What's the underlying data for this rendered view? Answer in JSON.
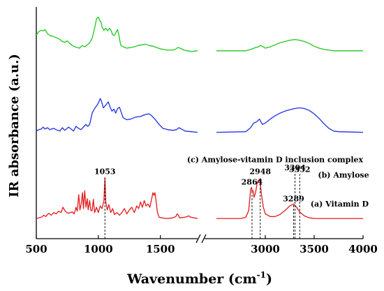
{
  "chart_data": {
    "type": "line",
    "xlabel": "Wavenumber (cm",
    "xlabel_sup": "-1",
    "xlabel_close": ")",
    "ylabel": "IR  absorbance (a.u.)",
    "x_panels": [
      {
        "xlim": [
          500,
          1800
        ],
        "ticks": [
          500,
          1000,
          1500
        ]
      },
      {
        "xlim": [
          2500,
          4000
        ],
        "ticks": [
          3000,
          3500,
          4000
        ]
      }
    ],
    "axis_break": true,
    "grid": false,
    "legend": "none (labels printed next to each trace)",
    "series": [
      {
        "name": "(a) Vitamin D",
        "color": "#e41a1c",
        "offset": 0,
        "scale": 1.0,
        "points": [
          [
            500,
            0.03
          ],
          [
            540,
            0.05
          ],
          [
            560,
            0.08
          ],
          [
            575,
            0.06
          ],
          [
            600,
            0.11
          ],
          [
            620,
            0.08
          ],
          [
            640,
            0.12
          ],
          [
            660,
            0.1
          ],
          [
            680,
            0.14
          ],
          [
            700,
            0.12
          ],
          [
            715,
            0.2
          ],
          [
            730,
            0.15
          ],
          [
            745,
            0.12
          ],
          [
            760,
            0.11
          ],
          [
            790,
            0.13
          ],
          [
            805,
            0.1
          ],
          [
            820,
            0.2
          ],
          [
            830,
            0.14
          ],
          [
            842,
            0.39
          ],
          [
            852,
            0.16
          ],
          [
            862,
            0.25
          ],
          [
            872,
            0.42
          ],
          [
            880,
            0.18
          ],
          [
            890,
            0.45
          ],
          [
            900,
            0.2
          ],
          [
            910,
            0.33
          ],
          [
            918,
            0.16
          ],
          [
            930,
            0.3
          ],
          [
            940,
            0.15
          ],
          [
            950,
            0.15
          ],
          [
            960,
            0.32
          ],
          [
            970,
            0.12
          ],
          [
            985,
            0.2
          ],
          [
            1000,
            0.12
          ],
          [
            1015,
            0.22
          ],
          [
            1030,
            0.18
          ],
          [
            1045,
            0.3
          ],
          [
            1053,
            0.64
          ],
          [
            1060,
            0.28
          ],
          [
            1072,
            0.16
          ],
          [
            1085,
            0.24
          ],
          [
            1100,
            0.12
          ],
          [
            1115,
            0.18
          ],
          [
            1130,
            0.09
          ],
          [
            1150,
            0.12
          ],
          [
            1170,
            0.08
          ],
          [
            1190,
            0.12
          ],
          [
            1210,
            0.18
          ],
          [
            1230,
            0.1
          ],
          [
            1250,
            0.16
          ],
          [
            1270,
            0.2
          ],
          [
            1290,
            0.12
          ],
          [
            1310,
            0.22
          ],
          [
            1325,
            0.18
          ],
          [
            1340,
            0.28
          ],
          [
            1355,
            0.2
          ],
          [
            1370,
            0.3
          ],
          [
            1385,
            0.22
          ],
          [
            1400,
            0.25
          ],
          [
            1415,
            0.2
          ],
          [
            1430,
            0.33
          ],
          [
            1440,
            0.42
          ],
          [
            1448,
            0.38
          ],
          [
            1456,
            0.42
          ],
          [
            1465,
            0.3
          ],
          [
            1475,
            0.13
          ],
          [
            1490,
            0.05
          ],
          [
            1510,
            0.04
          ],
          [
            1550,
            0.03
          ],
          [
            1600,
            0.04
          ],
          [
            1625,
            0.06
          ],
          [
            1635,
            0.1
          ],
          [
            1645,
            0.08
          ],
          [
            1655,
            0.04
          ],
          [
            1700,
            0.05
          ],
          [
            1730,
            0.07
          ],
          [
            1745,
            0.05
          ],
          [
            1800,
            0.03
          ],
          [
            2500,
            0.03
          ],
          [
            2750,
            0.03
          ],
          [
            2800,
            0.05
          ],
          [
            2830,
            0.15
          ],
          [
            2850,
            0.47
          ],
          [
            2860,
            0.5
          ],
          [
            2864,
            0.45
          ],
          [
            2875,
            0.45
          ],
          [
            2885,
            0.35
          ],
          [
            2900,
            0.42
          ],
          [
            2915,
            0.55
          ],
          [
            2925,
            0.6
          ],
          [
            2940,
            0.62
          ],
          [
            2948,
            0.57
          ],
          [
            2960,
            0.4
          ],
          [
            2980,
            0.2
          ],
          [
            3000,
            0.1
          ],
          [
            3050,
            0.06
          ],
          [
            3100,
            0.06
          ],
          [
            3150,
            0.09
          ],
          [
            3200,
            0.15
          ],
          [
            3250,
            0.22
          ],
          [
            3289,
            0.25
          ],
          [
            3320,
            0.2
          ],
          [
            3350,
            0.13
          ],
          [
            3400,
            0.07
          ],
          [
            3450,
            0.04
          ],
          [
            3500,
            0.03
          ],
          [
            4000,
            0.03
          ]
        ]
      },
      {
        "name": "(b) Amylose",
        "color": "#1f2ee6",
        "offset": 1.0,
        "scale": 1.0,
        "points": [
          [
            500,
            0.35
          ],
          [
            520,
            0.37
          ],
          [
            540,
            0.38
          ],
          [
            555,
            0.41
          ],
          [
            570,
            0.38
          ],
          [
            590,
            0.4
          ],
          [
            610,
            0.37
          ],
          [
            640,
            0.39
          ],
          [
            660,
            0.37
          ],
          [
            690,
            0.35
          ],
          [
            710,
            0.4
          ],
          [
            730,
            0.36
          ],
          [
            760,
            0.41
          ],
          [
            780,
            0.38
          ],
          [
            800,
            0.35
          ],
          [
            820,
            0.42
          ],
          [
            840,
            0.39
          ],
          [
            860,
            0.37
          ],
          [
            880,
            0.41
          ],
          [
            900,
            0.45
          ],
          [
            915,
            0.42
          ],
          [
            930,
            0.45
          ],
          [
            950,
            0.62
          ],
          [
            970,
            0.69
          ],
          [
            990,
            0.74
          ],
          [
            1000,
            0.77
          ],
          [
            1015,
            0.84
          ],
          [
            1025,
            0.8
          ],
          [
            1040,
            0.7
          ],
          [
            1060,
            0.74
          ],
          [
            1080,
            0.79
          ],
          [
            1095,
            0.71
          ],
          [
            1110,
            0.65
          ],
          [
            1125,
            0.68
          ],
          [
            1140,
            0.62
          ],
          [
            1155,
            0.69
          ],
          [
            1170,
            0.71
          ],
          [
            1185,
            0.63
          ],
          [
            1200,
            0.55
          ],
          [
            1230,
            0.52
          ],
          [
            1260,
            0.53
          ],
          [
            1300,
            0.56
          ],
          [
            1340,
            0.57
          ],
          [
            1380,
            0.6
          ],
          [
            1410,
            0.61
          ],
          [
            1430,
            0.58
          ],
          [
            1460,
            0.52
          ],
          [
            1490,
            0.45
          ],
          [
            1520,
            0.39
          ],
          [
            1560,
            0.37
          ],
          [
            1600,
            0.36
          ],
          [
            1630,
            0.37
          ],
          [
            1650,
            0.4
          ],
          [
            1670,
            0.38
          ],
          [
            1700,
            0.35
          ],
          [
            1750,
            0.34
          ],
          [
            1800,
            0.33
          ],
          [
            2500,
            0.33
          ],
          [
            2800,
            0.34
          ],
          [
            2850,
            0.4
          ],
          [
            2880,
            0.47
          ],
          [
            2900,
            0.48
          ],
          [
            2920,
            0.5
          ],
          [
            2940,
            0.53
          ],
          [
            2948,
            0.51
          ],
          [
            2970,
            0.45
          ],
          [
            3000,
            0.47
          ],
          [
            3050,
            0.53
          ],
          [
            3100,
            0.58
          ],
          [
            3150,
            0.62
          ],
          [
            3200,
            0.65
          ],
          [
            3250,
            0.67
          ],
          [
            3300,
            0.69
          ],
          [
            3352,
            0.7
          ],
          [
            3400,
            0.69
          ],
          [
            3450,
            0.66
          ],
          [
            3500,
            0.61
          ],
          [
            3550,
            0.54
          ],
          [
            3600,
            0.46
          ],
          [
            3650,
            0.39
          ],
          [
            3700,
            0.35
          ],
          [
            3750,
            0.34
          ],
          [
            4000,
            0.33
          ]
        ]
      },
      {
        "name": "(c) Amylose-vitamin D inclusion complex",
        "color": "#1ec81e",
        "offset": 2.0,
        "scale": 1.0,
        "points": [
          [
            500,
            0.8
          ],
          [
            520,
            0.85
          ],
          [
            540,
            0.87
          ],
          [
            555,
            0.86
          ],
          [
            570,
            0.88
          ],
          [
            590,
            0.82
          ],
          [
            610,
            0.79
          ],
          [
            630,
            0.78
          ],
          [
            660,
            0.76
          ],
          [
            690,
            0.73
          ],
          [
            710,
            0.7
          ],
          [
            730,
            0.69
          ],
          [
            750,
            0.71
          ],
          [
            770,
            0.67
          ],
          [
            790,
            0.64
          ],
          [
            810,
            0.62
          ],
          [
            830,
            0.61
          ],
          [
            850,
            0.6
          ],
          [
            870,
            0.64
          ],
          [
            890,
            0.62
          ],
          [
            910,
            0.65
          ],
          [
            930,
            0.68
          ],
          [
            950,
            0.75
          ],
          [
            970,
            0.9
          ],
          [
            985,
            1.04
          ],
          [
            1000,
            1.07
          ],
          [
            1010,
            1.02
          ],
          [
            1020,
            1.0
          ],
          [
            1030,
            0.92
          ],
          [
            1045,
            0.87
          ],
          [
            1060,
            0.9
          ],
          [
            1075,
            0.86
          ],
          [
            1090,
            0.9
          ],
          [
            1105,
            0.86
          ],
          [
            1115,
            0.8
          ],
          [
            1130,
            0.79
          ],
          [
            1145,
            0.85
          ],
          [
            1155,
            0.88
          ],
          [
            1165,
            0.8
          ],
          [
            1180,
            0.65
          ],
          [
            1200,
            0.62
          ],
          [
            1230,
            0.6
          ],
          [
            1260,
            0.61
          ],
          [
            1290,
            0.62
          ],
          [
            1320,
            0.64
          ],
          [
            1350,
            0.65
          ],
          [
            1380,
            0.66
          ],
          [
            1410,
            0.64
          ],
          [
            1440,
            0.63
          ],
          [
            1470,
            0.61
          ],
          [
            1500,
            0.59
          ],
          [
            1530,
            0.58
          ],
          [
            1560,
            0.57
          ],
          [
            1590,
            0.57
          ],
          [
            1620,
            0.58
          ],
          [
            1640,
            0.61
          ],
          [
            1660,
            0.6
          ],
          [
            1690,
            0.57
          ],
          [
            1720,
            0.56
          ],
          [
            1750,
            0.55
          ],
          [
            1800,
            0.56
          ],
          [
            2500,
            0.56
          ],
          [
            2800,
            0.56
          ],
          [
            2850,
            0.58
          ],
          [
            2900,
            0.61
          ],
          [
            2930,
            0.62
          ],
          [
            2948,
            0.64
          ],
          [
            2970,
            0.63
          ],
          [
            3000,
            0.6
          ],
          [
            3050,
            0.62
          ],
          [
            3100,
            0.65
          ],
          [
            3150,
            0.68
          ],
          [
            3200,
            0.7
          ],
          [
            3250,
            0.72
          ],
          [
            3304,
            0.73
          ],
          [
            3350,
            0.72
          ],
          [
            3400,
            0.7
          ],
          [
            3450,
            0.67
          ],
          [
            3500,
            0.63
          ],
          [
            3550,
            0.6
          ],
          [
            3600,
            0.58
          ],
          [
            3650,
            0.57
          ],
          [
            3700,
            0.56
          ],
          [
            4000,
            0.56
          ]
        ]
      }
    ],
    "annotations": [
      {
        "text": "1053",
        "x": 1053,
        "y": 0.7
      },
      {
        "text": "2864",
        "x": 2864,
        "y": 0.54
      },
      {
        "text": "2948",
        "x": 2948,
        "y": 0.7
      },
      {
        "text": "3304",
        "x": 3304,
        "y": 0.76
      },
      {
        "text": "3352",
        "x": 3352,
        "y": 0.73
      },
      {
        "text": "3289",
        "x": 3289,
        "y": 0.29
      },
      {
        "text": "(c) Amylose-vitamin D inclusion complex",
        "x": 3100,
        "y": 0.88
      },
      {
        "text": "(b) Amylose",
        "x": 3800,
        "y": 0.65
      },
      {
        "text": "(a) Vitamin D",
        "x": 3760,
        "y": 0.21
      }
    ],
    "vertical_guides": [
      {
        "x": 1053,
        "y_top": 0.65
      },
      {
        "x": 2864,
        "y_top": 0.45
      },
      {
        "x": 2948,
        "y_top": 0.64
      },
      {
        "x": 3289,
        "y_top": 0.25
      },
      {
        "x": 3304,
        "y_top": 0.73
      },
      {
        "x": 3352,
        "y_top": 0.7
      }
    ]
  }
}
